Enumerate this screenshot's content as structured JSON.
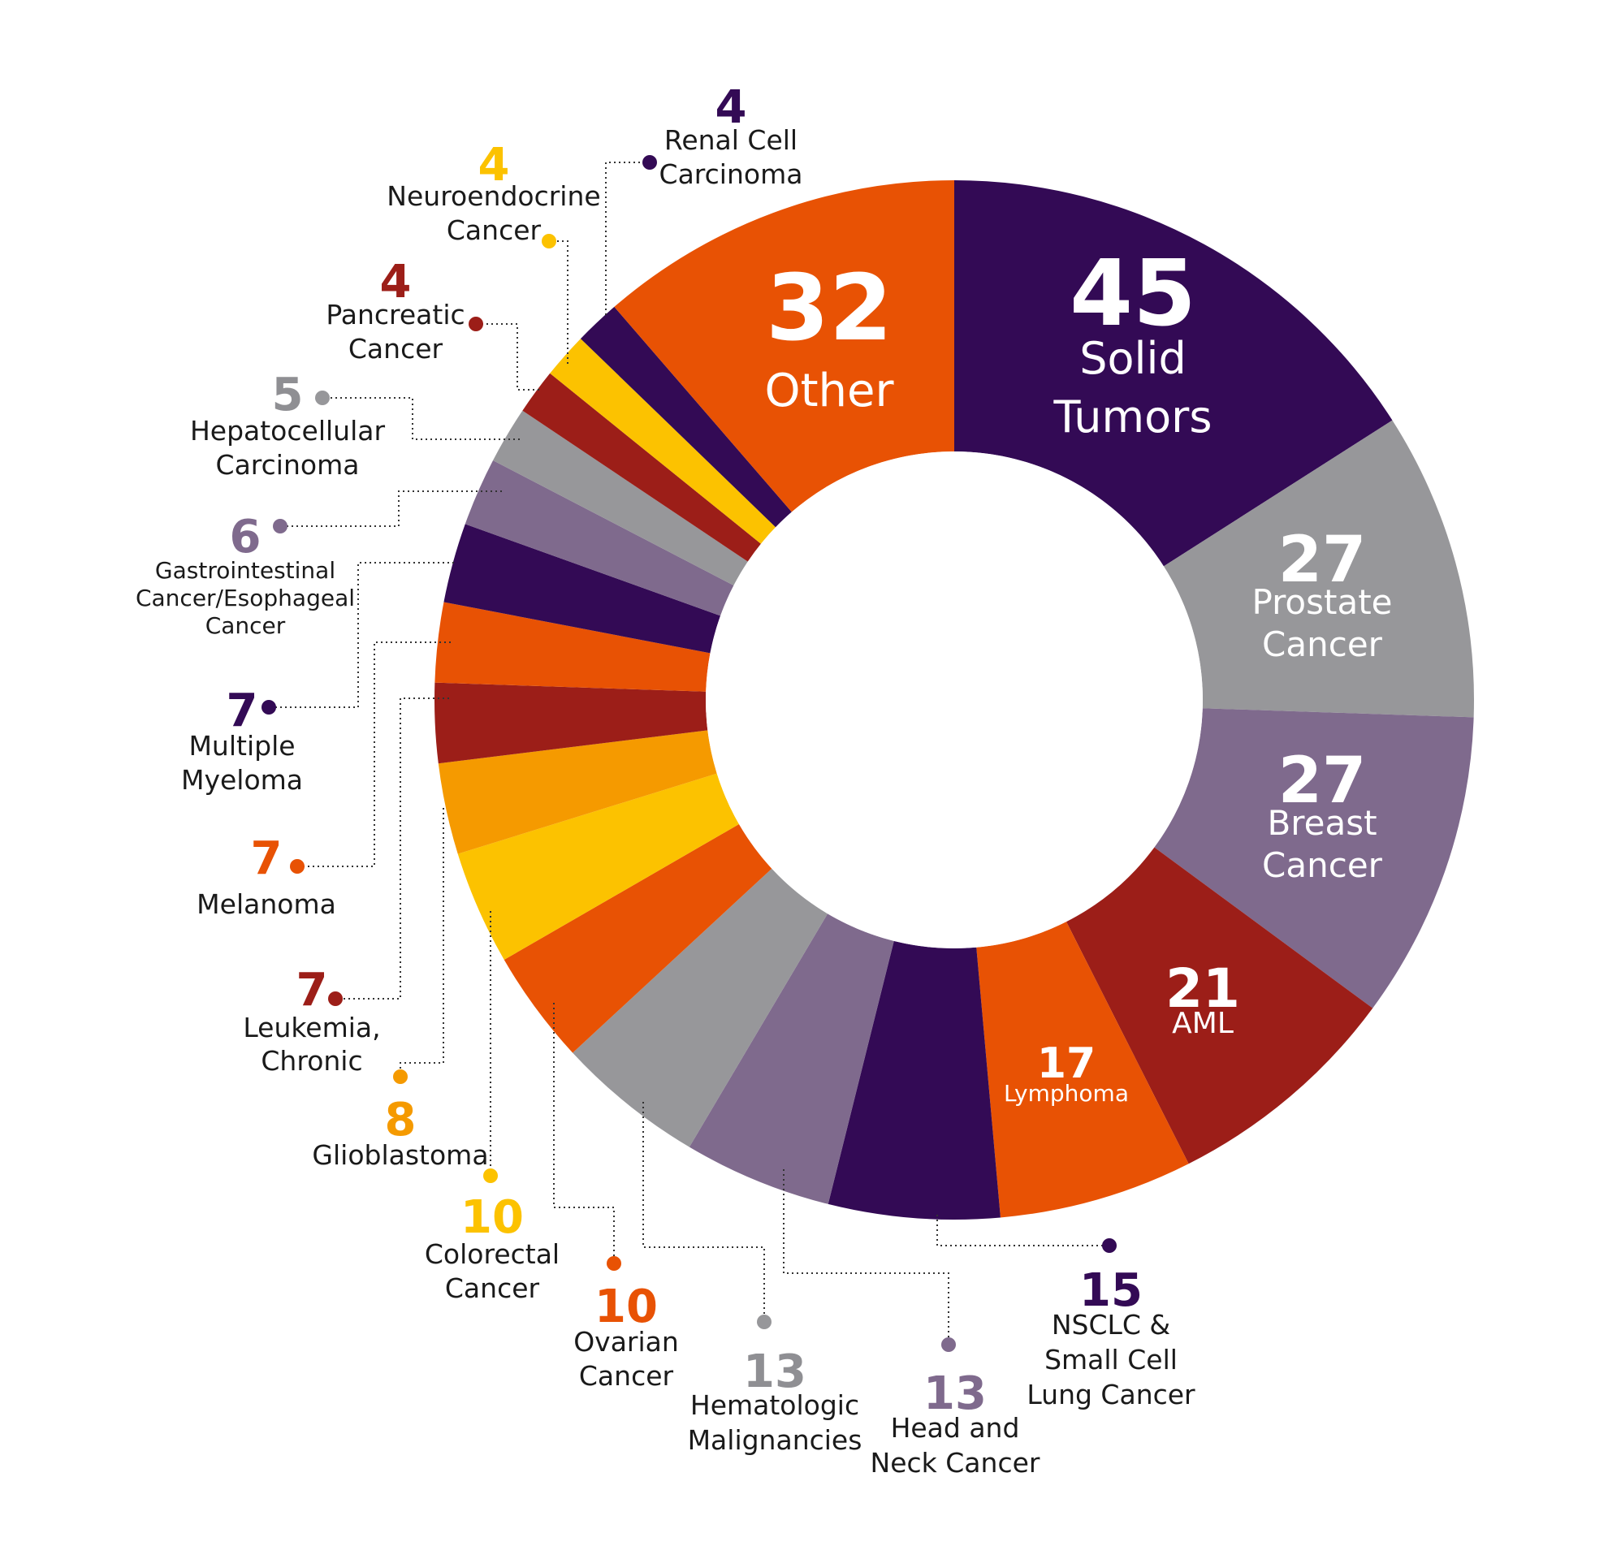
{
  "chart_data": {
    "type": "pie",
    "variant": "donut",
    "start": "12-o'clock",
    "direction": "clockwise",
    "slices": [
      {
        "value": 45,
        "label": [
          "Solid",
          "Tumors"
        ],
        "color": "#330a55",
        "text": "inside"
      },
      {
        "value": 27,
        "label": [
          "Prostate",
          "Cancer"
        ],
        "color": "#97979a",
        "text": "inside"
      },
      {
        "value": 27,
        "label": [
          "Breast",
          "Cancer"
        ],
        "color": "#7f6a8d",
        "text": "inside"
      },
      {
        "value": 21,
        "label": [
          "AML"
        ],
        "color": "#9c1e18",
        "text": "inside"
      },
      {
        "value": 17,
        "label": [
          "Lymphoma"
        ],
        "color": "#e85204",
        "text": "inside"
      },
      {
        "value": 15,
        "label": [
          "NSCLC &",
          "Small Cell",
          "Lung Cancer"
        ],
        "color": "#330a55",
        "text": "outside"
      },
      {
        "value": 13,
        "label": [
          "Head and",
          "Neck Cancer"
        ],
        "color": "#7f6a8d",
        "text": "outside"
      },
      {
        "value": 13,
        "label": [
          "Hematologic",
          "Malignancies"
        ],
        "color": "#97979a",
        "text": "outside"
      },
      {
        "value": 10,
        "label": [
          "Ovarian",
          "Cancer"
        ],
        "color": "#e85204",
        "text": "outside"
      },
      {
        "value": 10,
        "label": [
          "Colorectal",
          "Cancer"
        ],
        "color": "#fcc200",
        "text": "outside"
      },
      {
        "value": 8,
        "label": [
          "Glioblastoma"
        ],
        "color": "#f59a00",
        "text": "outside"
      },
      {
        "value": 7,
        "label": [
          "Leukemia,",
          "Chronic"
        ],
        "color": "#9c1e18",
        "text": "outside"
      },
      {
        "value": 7,
        "label": [
          "Melanoma"
        ],
        "color": "#e85204",
        "text": "outside"
      },
      {
        "value": 7,
        "label": [
          "Multiple",
          "Myeloma"
        ],
        "color": "#330a55",
        "text": "outside"
      },
      {
        "value": 6,
        "label": [
          "Gastrointestinal",
          "Cancer/Esophageal",
          "Cancer"
        ],
        "color": "#7f6a8d",
        "text": "outside"
      },
      {
        "value": 5,
        "label": [
          "Hepatocellular",
          "Carcinoma"
        ],
        "color": "#97979a",
        "text": "outside"
      },
      {
        "value": 4,
        "label": [
          "Pancreatic",
          "Cancer"
        ],
        "color": "#9c1e18",
        "text": "outside"
      },
      {
        "value": 4,
        "label": [
          "Neuroendocrine",
          "Cancer"
        ],
        "color": "#fcc200",
        "text": "outside"
      },
      {
        "value": 4,
        "label": [
          "Renal Cell",
          "Carcinoma"
        ],
        "color": "#330a55",
        "text": "outside"
      },
      {
        "value": 32,
        "label": [
          "Other"
        ],
        "color": "#e85204",
        "text": "inside"
      }
    ]
  }
}
